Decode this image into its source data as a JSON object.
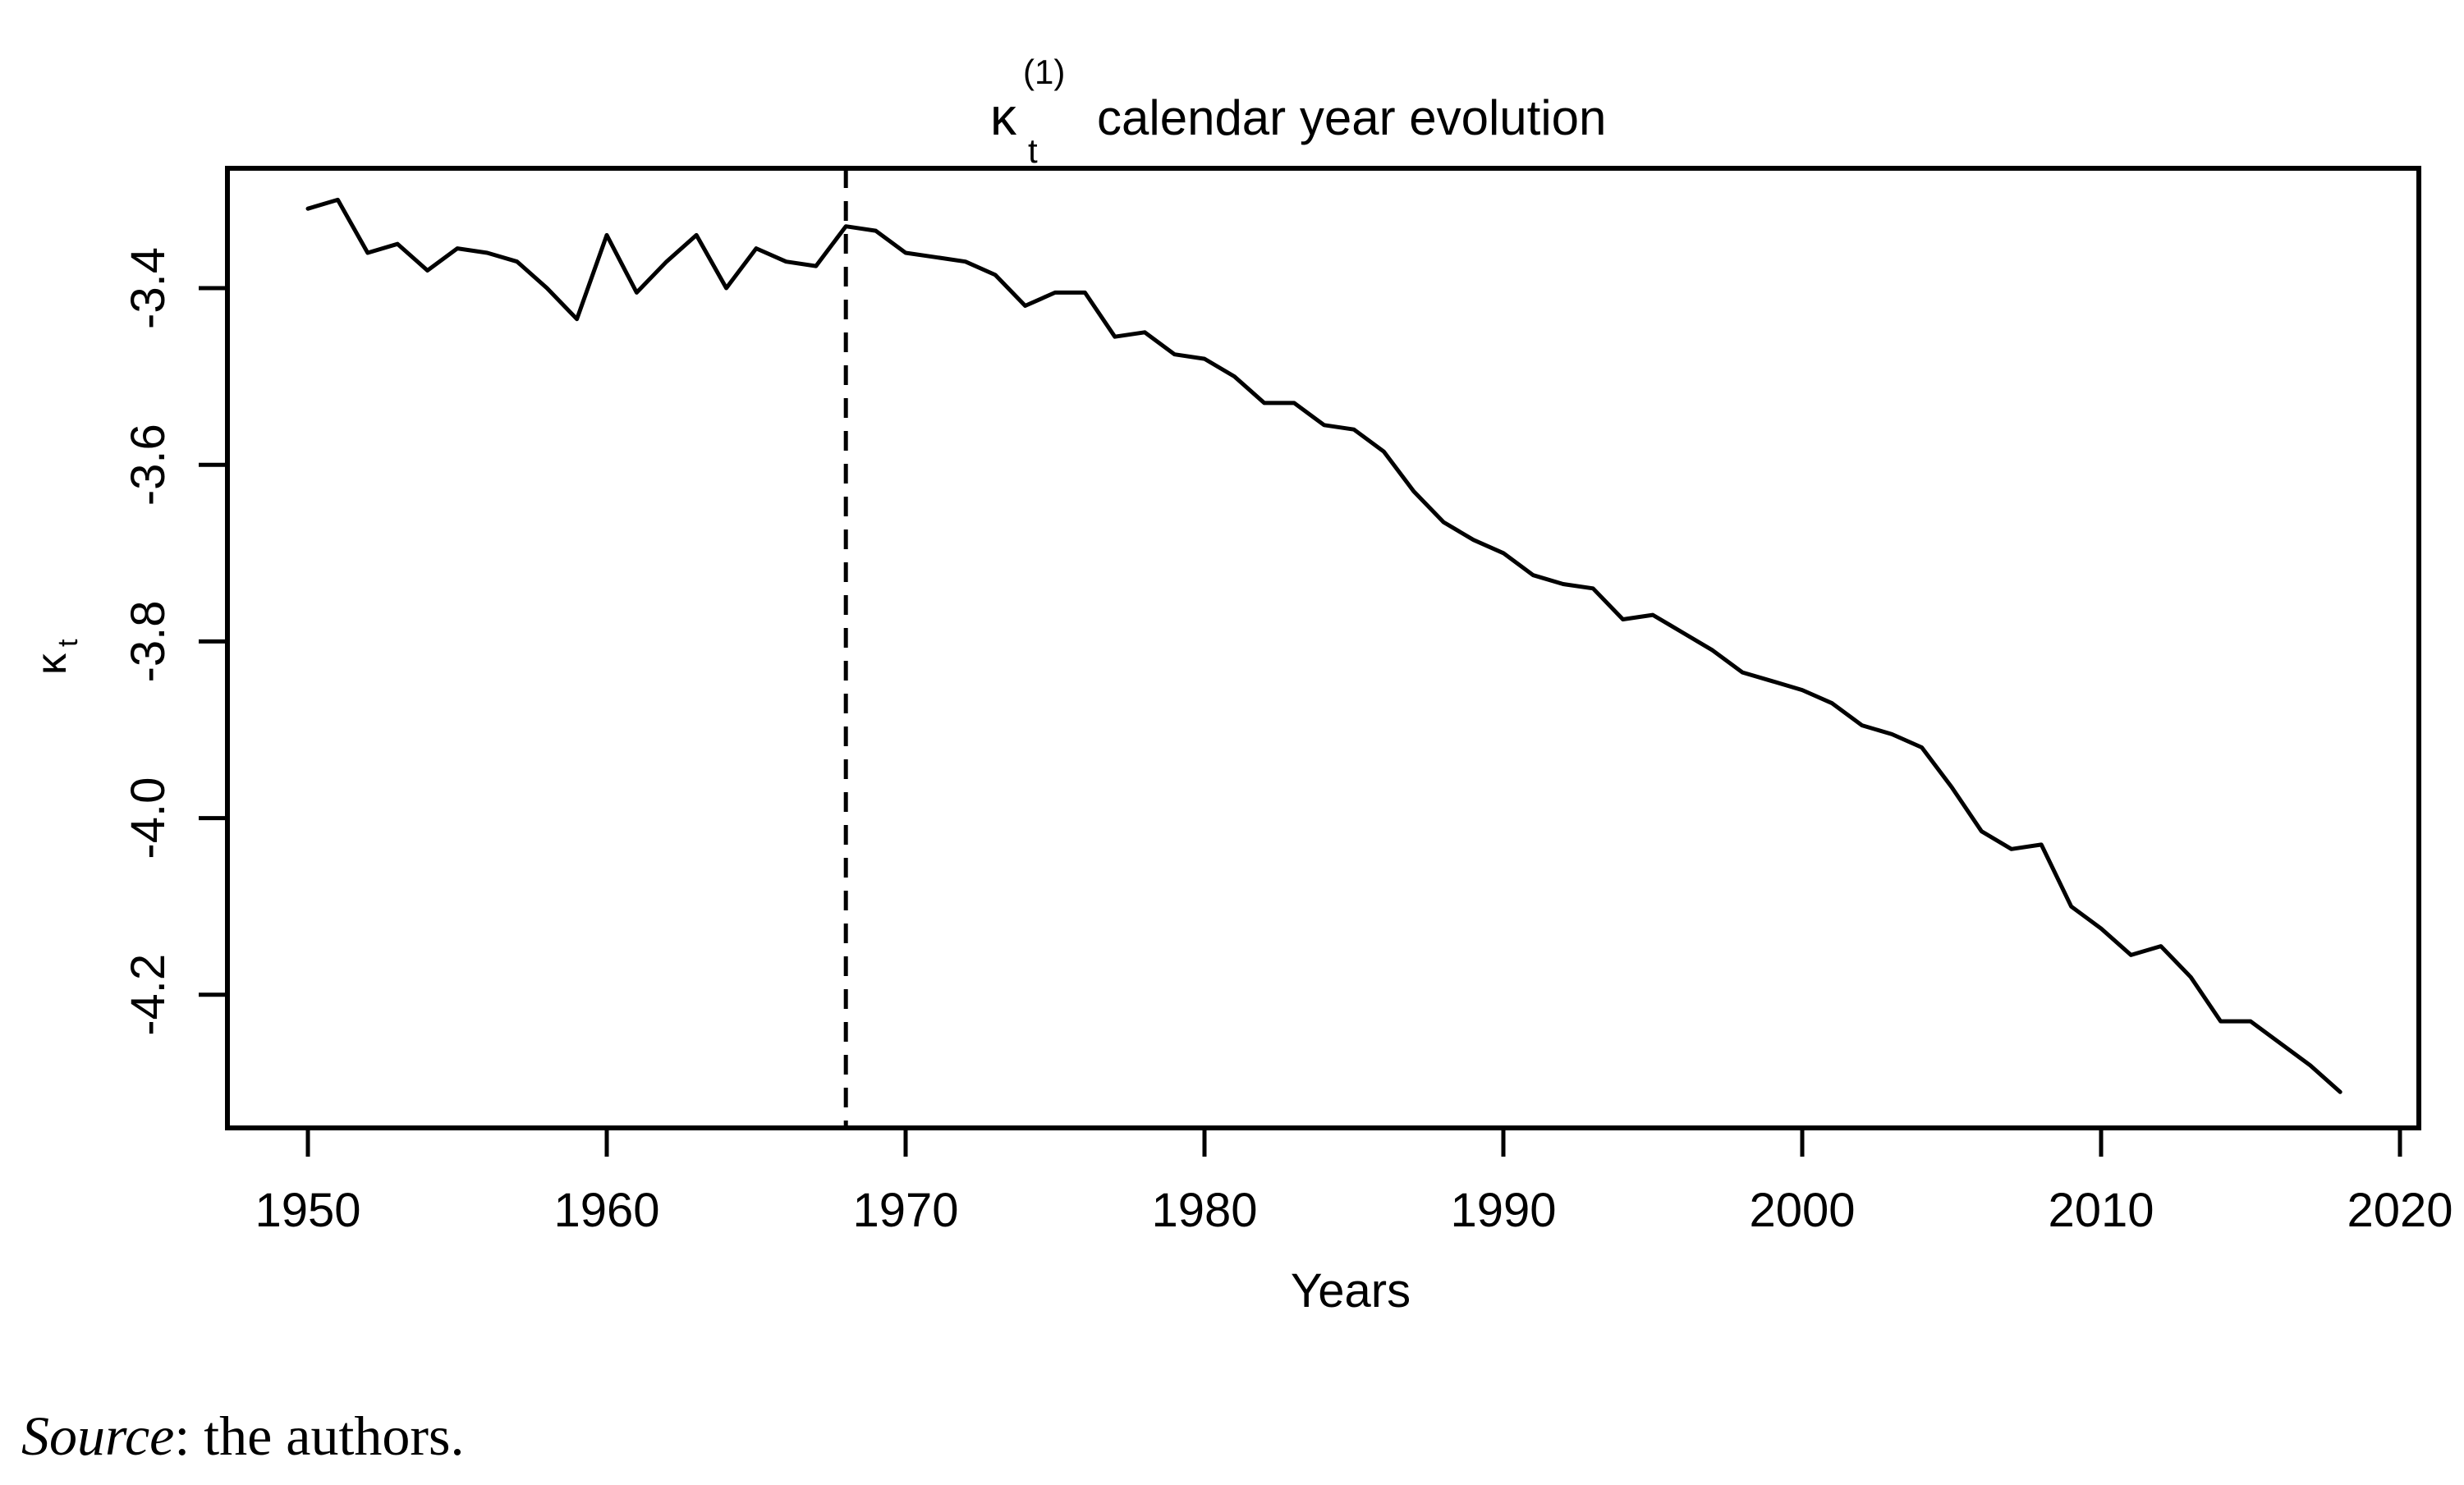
{
  "figure": {
    "title": {
      "kappa": "κ",
      "superscript": "(1)",
      "subscript": "t",
      "text": "calendar year evolution"
    },
    "x_axis": {
      "label": "Years",
      "tick_labels": [
        "1950",
        "1960",
        "1970",
        "1980",
        "1990",
        "2000",
        "2010",
        "2020"
      ]
    },
    "y_axis": {
      "label_kappa": "κ",
      "label_subscript": "t",
      "tick_labels": [
        "-3.4",
        "-3.6",
        "-3.8",
        "-4.0",
        "-4.2"
      ]
    },
    "source_note": {
      "label": "Source",
      "rest": ": the authors."
    }
  },
  "colors": {
    "line": "#000000",
    "frame": "#000000",
    "text": "#000000",
    "background": "#ffffff"
  },
  "chart_data": {
    "type": "line",
    "title": "κ_t^(1) calendar year evolution",
    "xlabel": "Years",
    "ylabel": "κ_t",
    "x": [
      1950,
      1951,
      1952,
      1953,
      1954,
      1955,
      1956,
      1957,
      1958,
      1959,
      1960,
      1961,
      1962,
      1963,
      1964,
      1965,
      1966,
      1967,
      1968,
      1969,
      1970,
      1971,
      1972,
      1973,
      1974,
      1975,
      1976,
      1977,
      1978,
      1979,
      1980,
      1981,
      1982,
      1983,
      1984,
      1985,
      1986,
      1987,
      1988,
      1989,
      1990,
      1991,
      1992,
      1993,
      1994,
      1995,
      1996,
      1997,
      1998,
      1999,
      2000,
      2001,
      2002,
      2003,
      2004,
      2005,
      2006,
      2007,
      2008,
      2009,
      2010,
      2011,
      2012,
      2013,
      2014,
      2015,
      2016,
      2017,
      2018
    ],
    "series": [
      {
        "name": "kappa_t_1",
        "values": [
          -3.31,
          -3.3,
          -3.36,
          -3.35,
          -3.38,
          -3.355,
          -3.36,
          -3.37,
          -3.4,
          -3.435,
          -3.34,
          -3.405,
          -3.37,
          -3.34,
          -3.4,
          -3.355,
          -3.37,
          -3.375,
          -3.33,
          -3.335,
          -3.36,
          -3.365,
          -3.37,
          -3.385,
          -3.42,
          -3.405,
          -3.405,
          -3.455,
          -3.45,
          -3.475,
          -3.48,
          -3.5,
          -3.53,
          -3.53,
          -3.555,
          -3.56,
          -3.585,
          -3.63,
          -3.665,
          -3.685,
          -3.7,
          -3.725,
          -3.735,
          -3.74,
          -3.775,
          -3.77,
          -3.79,
          -3.81,
          -3.835,
          -3.845,
          -3.855,
          -3.87,
          -3.895,
          -3.905,
          -3.92,
          -3.965,
          -4.015,
          -4.035,
          -4.03,
          -4.1,
          -4.125,
          -4.155,
          -4.145,
          -4.18,
          -4.23,
          -4.23,
          -4.255,
          -4.28,
          -4.31
        ]
      }
    ],
    "xlim": [
      1947.3,
      2020.9
    ],
    "ylim": [
      -4.35,
      -3.26
    ],
    "x_ticks": [
      1950,
      1960,
      1970,
      1980,
      1990,
      2000,
      2010,
      2020
    ],
    "y_ticks": [
      -3.4,
      -3.6,
      -3.8,
      -4.0,
      -4.2
    ],
    "vline": {
      "x": 1968,
      "style": "dashed"
    },
    "grid": false,
    "legend_position": "none"
  }
}
